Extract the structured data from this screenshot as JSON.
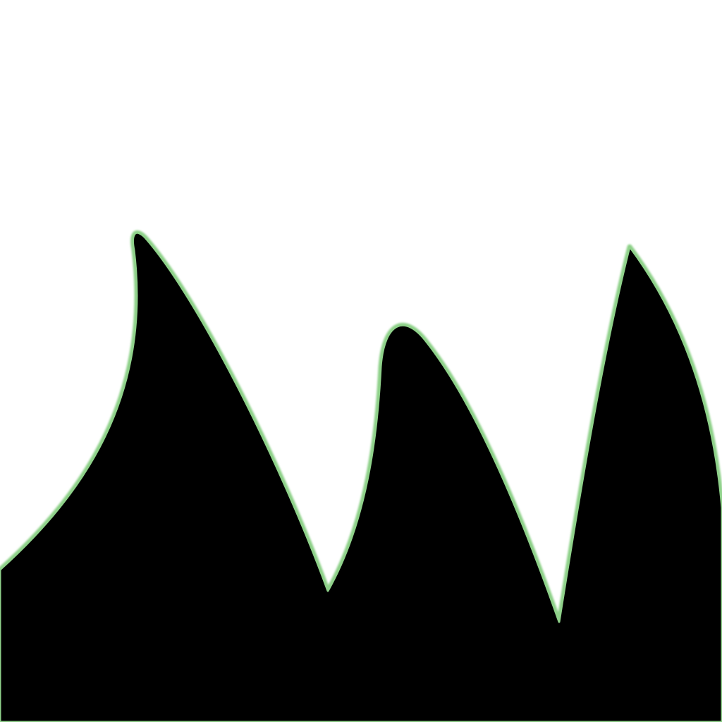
{
  "canvas": {
    "background_color": "#ffffff"
  },
  "shape": {
    "kind": "spiky-silhouette",
    "peak_count": 3,
    "fill_color": "#000000",
    "outline_color": "#8fd18a"
  }
}
